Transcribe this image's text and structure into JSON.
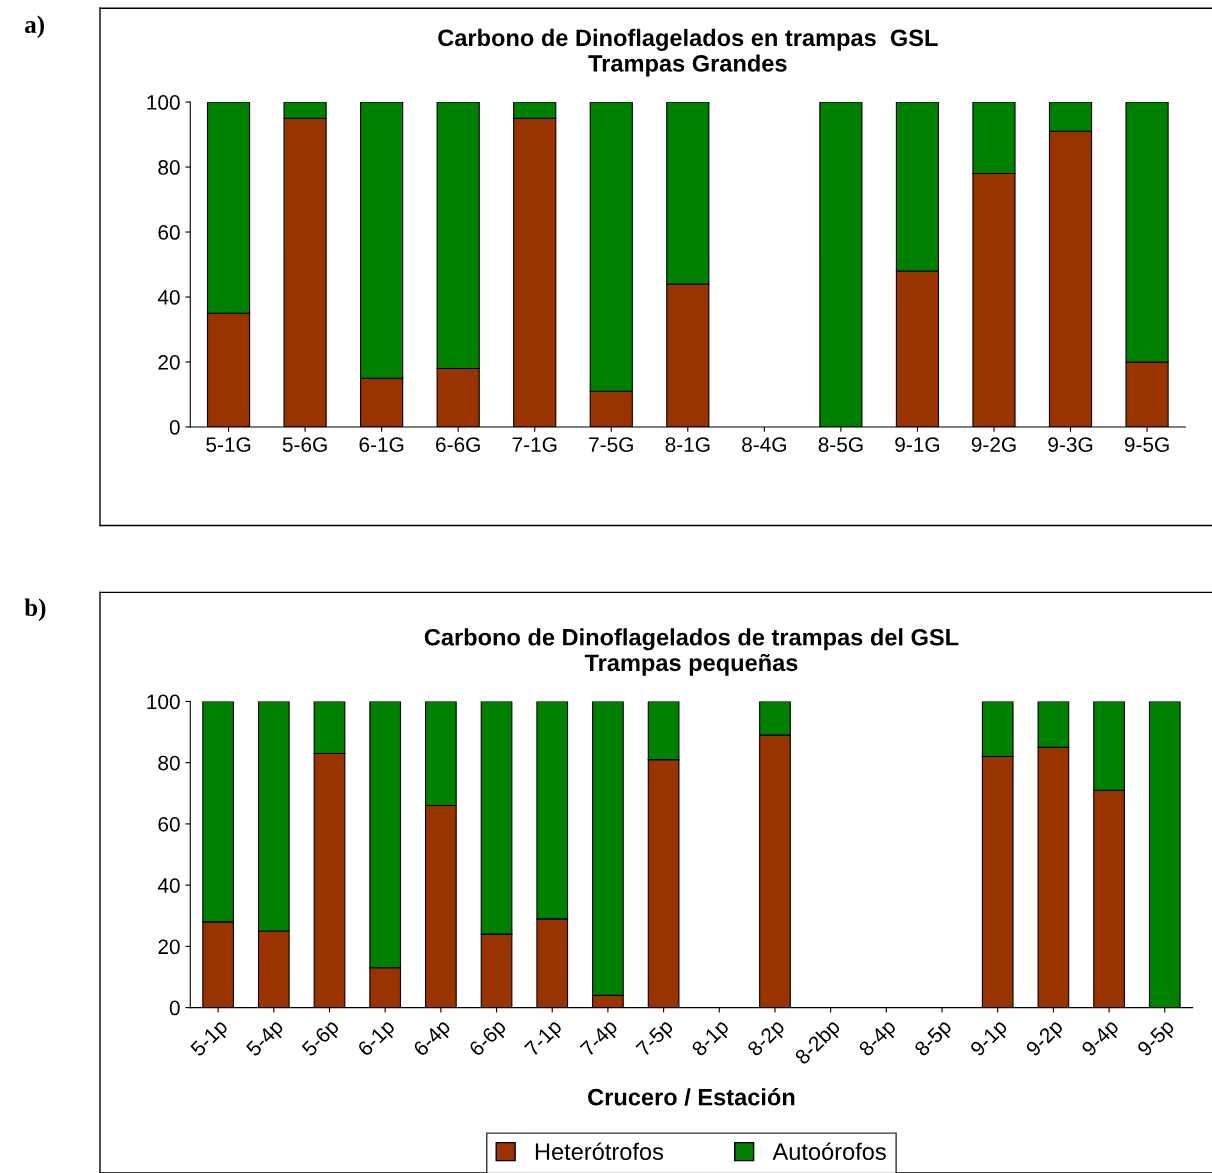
{
  "chart_data": [
    {
      "type": "bar",
      "title": "Carbono de Dinoflagelados en trampas  GSL\nTrampas Grandes",
      "stacked": true,
      "categories": [
        "5-1G",
        "5-6G",
        "6-1G",
        "6-6G",
        "7-1G",
        "7-5G",
        "8-1G",
        "8-4G",
        "8-5G",
        "9-1G",
        "9-2G",
        "9-3G",
        "9-5G"
      ],
      "series": [
        {
          "color": "#993300",
          "values": [
            35,
            95,
            15,
            18,
            95,
            11,
            44,
            null,
            0,
            48,
            78,
            91,
            20
          ]
        },
        {
          "color": "#008000",
          "values": [
            65,
            5,
            85,
            82,
            5,
            89,
            56,
            null,
            100,
            52,
            22,
            9,
            80
          ]
        }
      ],
      "ylim": [
        0,
        100
      ],
      "yticks": [
        0,
        20,
        40,
        60,
        80,
        100
      ],
      "grid": false,
      "legend": false,
      "annotations": [
        "a)"
      ]
    },
    {
      "type": "bar",
      "title": "Carbono de Dinoflagelados de trampas del GSL\nTrampas pequeñas",
      "xlabel": "Crucero / Estación",
      "stacked": true,
      "categories": [
        "5-1p",
        "5-4p",
        "5-6p",
        "6-1p",
        "6-4p",
        "6-6p",
        "7-1p",
        "7-4p",
        "7-5p",
        "8-1p",
        "8-2p",
        "8-2bp",
        "8-4p",
        "8-5p",
        "9-1p",
        "9-2p",
        "9-4p",
        "9-5p"
      ],
      "series": [
        {
          "name": "Heterótrofos",
          "color": "#993300",
          "values": [
            28,
            25,
            83,
            13,
            66,
            24,
            29,
            4,
            81,
            null,
            89,
            null,
            null,
            null,
            82,
            85,
            71,
            0
          ]
        },
        {
          "name": "Autoórofos",
          "color": "#008000",
          "values": [
            72,
            75,
            17,
            87,
            34,
            76,
            71,
            96,
            19,
            null,
            11,
            null,
            null,
            null,
            18,
            15,
            29,
            100
          ]
        }
      ],
      "ylim": [
        0,
        100
      ],
      "yticks": [
        0,
        20,
        40,
        60,
        80,
        100
      ],
      "grid": false,
      "legend": "bottom",
      "annotations": [
        "b)"
      ]
    }
  ]
}
